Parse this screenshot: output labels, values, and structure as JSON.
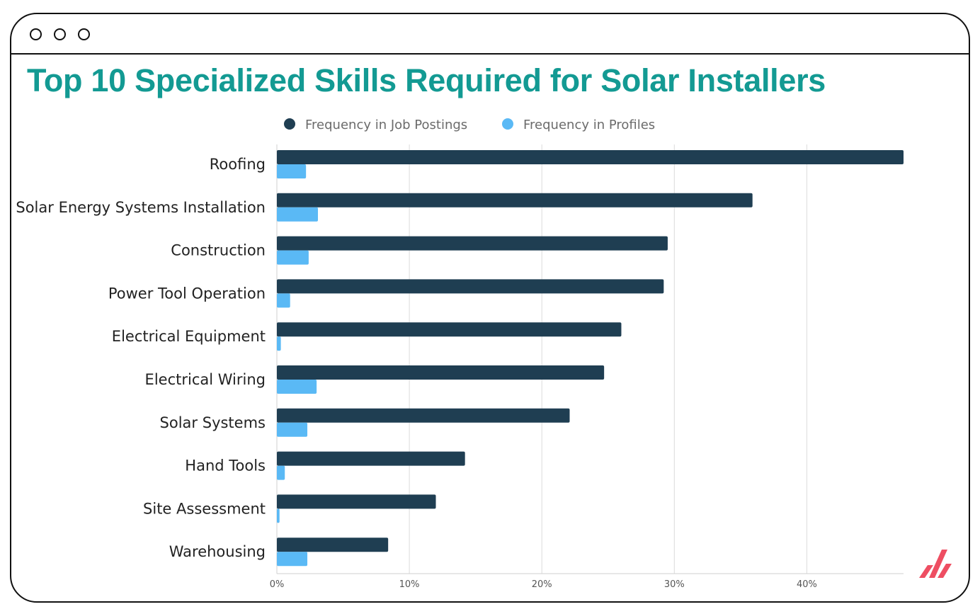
{
  "window": {
    "controls": [
      "window-dot-1",
      "window-dot-2",
      "window-dot-3"
    ]
  },
  "title": "Top 10 Specialized Skills Required for Solar Installers",
  "colors": {
    "title": "#139a93",
    "job_postings": "#1f3e52",
    "profiles": "#5ab9f5",
    "logo": "#ee4e62"
  },
  "chart_data": {
    "type": "bar",
    "orientation": "horizontal",
    "categories": [
      "Roofing",
      "Solar Energy Systems Installation",
      "Construction",
      "Power Tool Operation",
      "Electrical Equipment",
      "Electrical Wiring",
      "Solar Systems",
      "Hand Tools",
      "Site Assessment",
      "Warehousing"
    ],
    "series": [
      {
        "name": "Frequency in Job Postings",
        "values": [
          47.3,
          35.9,
          29.5,
          29.2,
          26.0,
          24.7,
          22.1,
          14.2,
          12.0,
          8.4
        ]
      },
      {
        "name": "Frequency in Profiles",
        "values": [
          2.2,
          3.1,
          2.4,
          1.0,
          0.3,
          3.0,
          2.3,
          0.6,
          0.2,
          2.3
        ]
      }
    ],
    "xticks": [
      "0%",
      "10%",
      "20%",
      "30%",
      "40%"
    ],
    "xlim": [
      0,
      47.3
    ],
    "grid": true,
    "legend": "top-center"
  }
}
